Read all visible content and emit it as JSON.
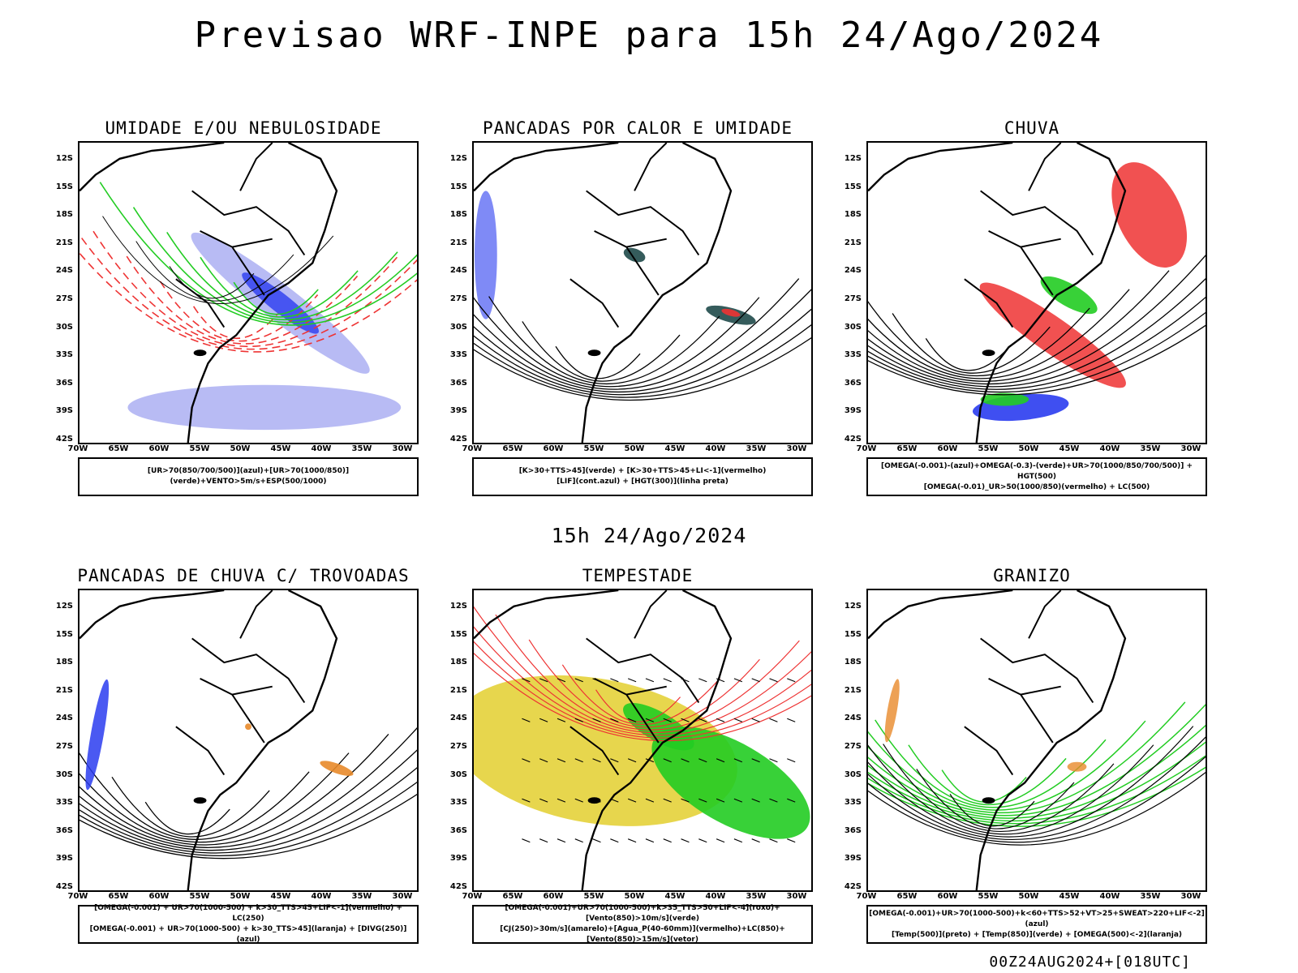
{
  "main_title": "Previsao WRF-INPE  para 15h 24/Ago/2024",
  "mid_title": "15h 24/Ago/2024",
  "footer": "00Z24AUG2024+[018UTC]",
  "lat_labels": [
    "12S",
    "15S",
    "18S",
    "21S",
    "24S",
    "27S",
    "30S",
    "33S",
    "36S",
    "39S",
    "42S"
  ],
  "lon_labels": [
    "70W",
    "65W",
    "60W",
    "55W",
    "50W",
    "45W",
    "40W",
    "35W",
    "30W"
  ],
  "colors": {
    "blue": "#2a3cf0",
    "green": "#22cc22",
    "red": "#ee3333",
    "orange": "#e88a2a",
    "yellow": "#e4d23a",
    "darkteal": "#1f4a4a",
    "lavender": "#9a9ef0"
  },
  "panels": [
    {
      "title": "UMIDADE E/OU NEBULOSIDADE",
      "legend": [
        "[UR>70(850/700/500)](azul)+[UR>70(1000/850)](verde)+VENTO>5m/s+ESP(500/1000)"
      ]
    },
    {
      "title": "PANCADAS POR CALOR E UMIDADE",
      "legend": [
        "[K>30+TTS>45](verde) + [K>30+TTS>45+LI<-1](vermelho)",
        "[LIF](cont.azul) + [HGT(300)](linha preta)"
      ]
    },
    {
      "title": "CHUVA",
      "legend": [
        "[OMEGA(-0.001)-(azul)+OMEGA(-0.3)-(verde)+UR>70(1000/850/700/500)] + HGT(500)",
        "[OMEGA(-0.01)_UR>50(1000/850)(vermelho) + LC(500)"
      ]
    },
    {
      "title": "PANCADAS DE CHUVA C/ TROVOADAS",
      "legend": [
        "[OMEGA(-0.001) + UR>70(1000-500) + k>30_TTS>45+LIF<-1](vermelho) + LC(250)",
        "[OMEGA(-0.001) + UR>70(1000-500) + k>30_TTS>45](laranja) + [DIVG(250)](azul)"
      ]
    },
    {
      "title": "TEMPESTADE",
      "legend": [
        "[OMEGA(-0.001)+UR>70(1000-500)+k>35_TTS>50+LIF<-4](roxo)+[Vento(850)>10m/s](verde)",
        "[CJ(250)>30m/s](amarelo)+[Agua_P(40-60mm)](vermelho)+LC(850)+[Vento(850)>15m/s](vetor)"
      ]
    },
    {
      "title": "GRANIZO",
      "legend": [
        "[OMEGA(-0.001)+UR>70(1000-500)+k<60+TTS>52+VT>25+SWEAT>220+LIF<-2](azul)",
        "[Temp(500)](preto) + [Temp(850)](verde) + [OMEGA(500)<-2](laranja)"
      ]
    }
  ]
}
